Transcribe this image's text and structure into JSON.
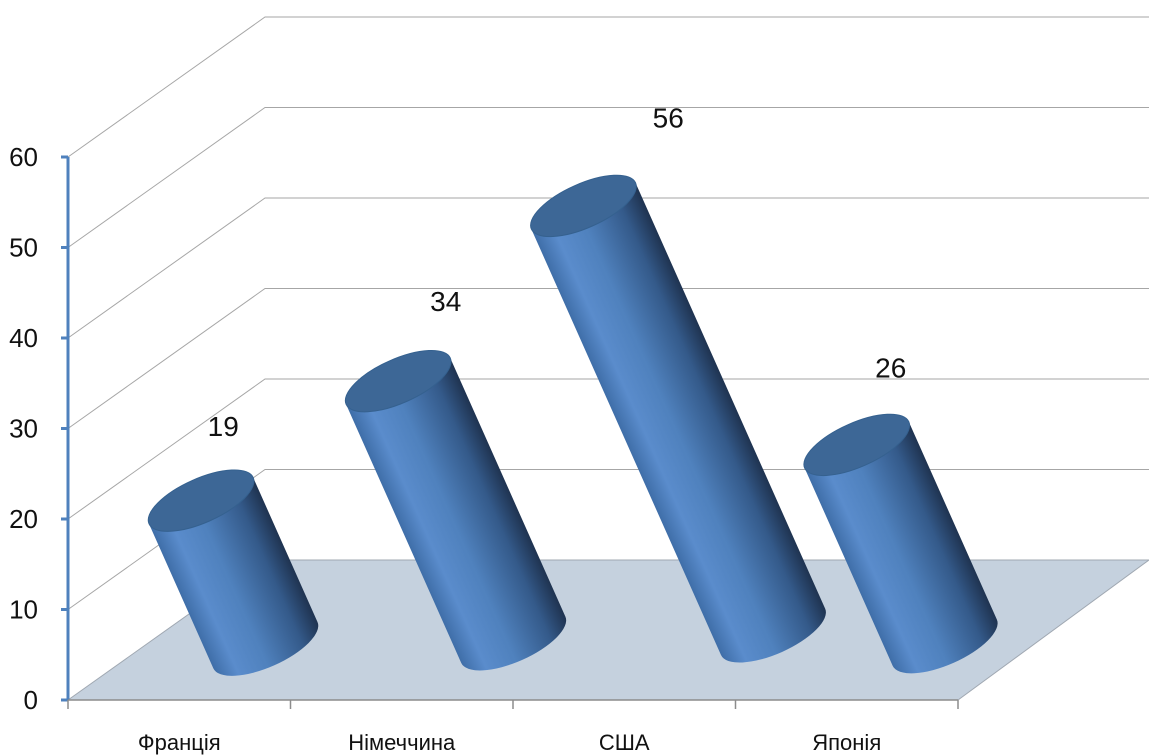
{
  "chart_data": {
    "type": "bar",
    "style": "3d-cylinder",
    "categories": [
      "Франція",
      "Німеччина",
      "США",
      "Японія"
    ],
    "values": [
      19,
      34,
      56,
      26
    ],
    "data_labels": [
      "19",
      "34",
      "56",
      "26"
    ],
    "ylim": [
      0,
      60
    ],
    "yticks": [
      "0",
      "10",
      "20",
      "30",
      "40",
      "50",
      "60"
    ],
    "grid": true,
    "legend": "none",
    "colors": {
      "bar": "#4f81bd",
      "bar_dark": "#243a5c",
      "bar_top": "#3d6796",
      "floor": "#c5d1de",
      "axis": "#4f81bd",
      "grid": "#a6a6a6"
    }
  }
}
